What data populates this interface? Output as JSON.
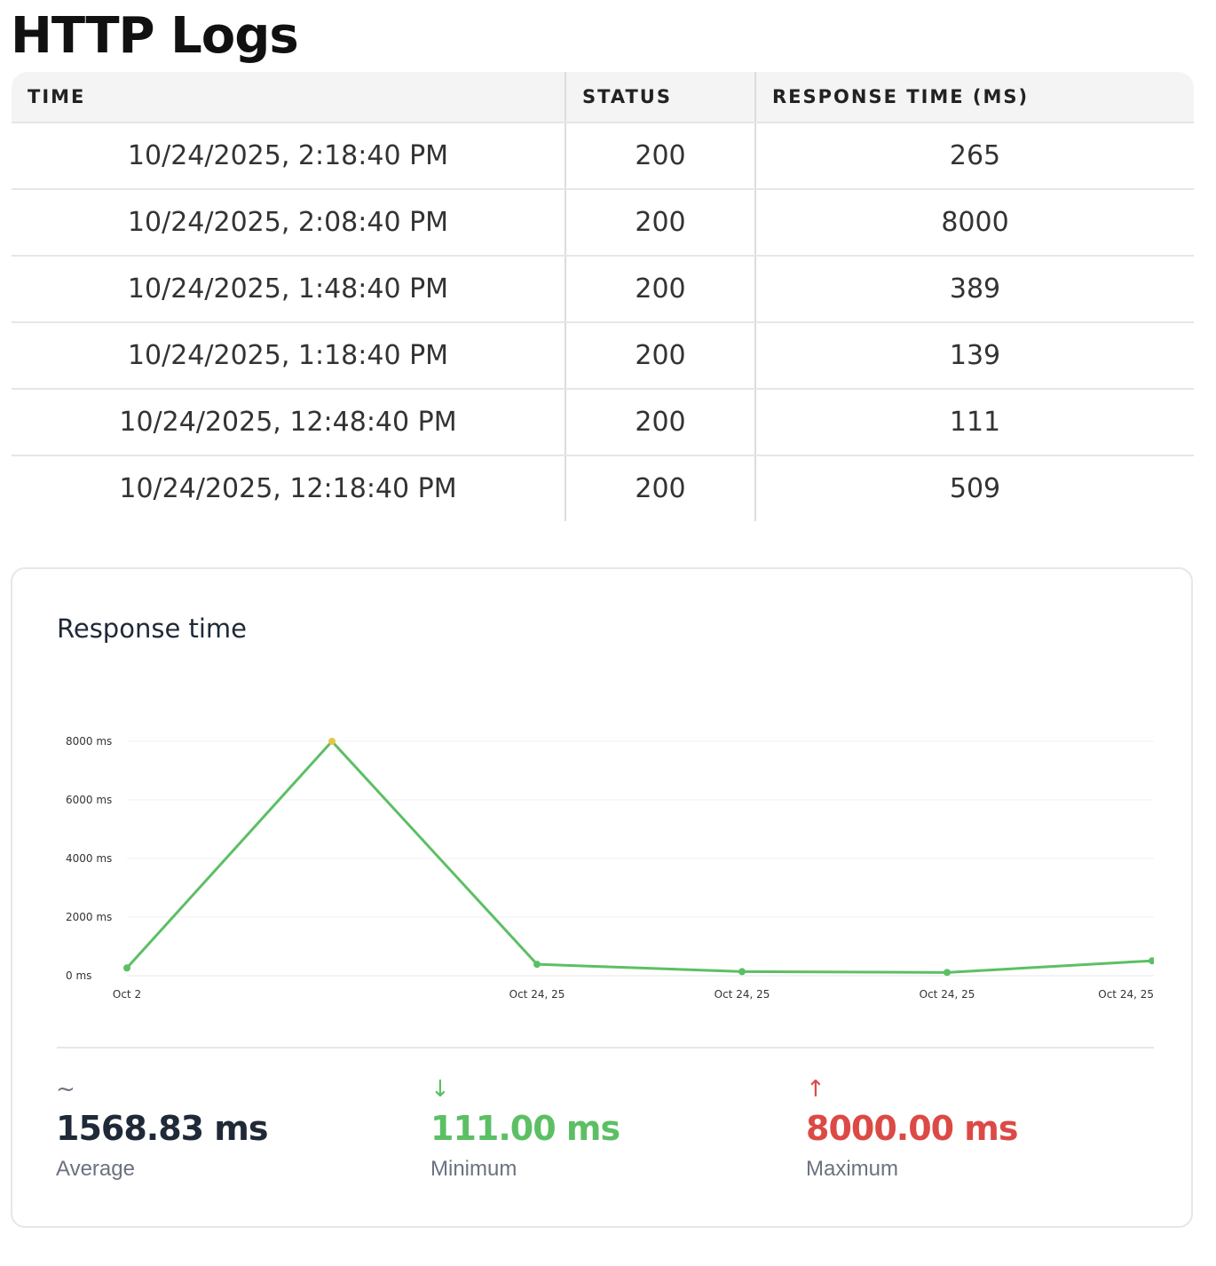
{
  "page": {
    "title": "HTTP Logs"
  },
  "table": {
    "headers": [
      "TIME",
      "STATUS",
      "RESPONSE TIME (MS)"
    ],
    "rows": [
      {
        "time": "10/24/2025, 2:18:40 PM",
        "status": "200",
        "response_time": "265"
      },
      {
        "time": "10/24/2025, 2:08:40 PM",
        "status": "200",
        "response_time": "8000"
      },
      {
        "time": "10/24/2025, 1:48:40 PM",
        "status": "200",
        "response_time": "389"
      },
      {
        "time": "10/24/2025, 1:18:40 PM",
        "status": "200",
        "response_time": "139"
      },
      {
        "time": "10/24/2025, 12:48:40 PM",
        "status": "200",
        "response_time": "111"
      },
      {
        "time": "10/24/2025, 12:18:40 PM",
        "status": "200",
        "response_time": "509"
      }
    ]
  },
  "card": {
    "title": "Response time",
    "stats": {
      "average": {
        "icon": "~",
        "icon_name": "tilde-icon",
        "value": "1568.83 ms",
        "label": "Average",
        "color": "#1f2937"
      },
      "minimum": {
        "icon": "↓",
        "icon_name": "arrow-down-icon",
        "value": "111.00 ms",
        "label": "Minimum",
        "color": "#5cbf64"
      },
      "maximum": {
        "icon": "↑",
        "icon_name": "arrow-up-icon",
        "value": "8000.00 ms",
        "label": "Maximum",
        "color": "#dc4a45"
      }
    }
  },
  "chart_data": {
    "type": "line",
    "title": "",
    "xlabel": "",
    "ylabel": "",
    "ylim": [
      0,
      8000
    ],
    "y_ticks": [
      0,
      2000,
      4000,
      6000,
      8000
    ],
    "y_tick_labels": [
      "0 ms",
      "2000 ms",
      "4000 ms",
      "6000 ms",
      "8000 ms"
    ],
    "x": [
      "12:18:40 PM",
      "12:48:40 PM",
      "1:18:40 PM",
      "1:48:40 PM",
      "2:08:40 PM",
      "2:18:40 PM"
    ],
    "x_tick_labels": [
      "Oct 24, 25",
      "Oct 24, 25",
      "Oct 24, 25",
      "Oct 24, 25",
      "",
      "Oct 2"
    ],
    "series": [
      {
        "values": [
          509,
          111,
          139,
          389,
          8000,
          265
        ],
        "color": "#5cbf64",
        "highlight_color": "#e8c547"
      }
    ],
    "grid": true
  }
}
